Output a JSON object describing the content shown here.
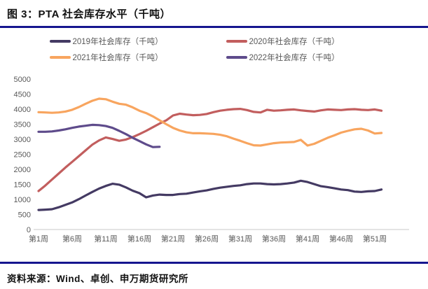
{
  "figure": {
    "title": "图 3：PTA 社会库存水平（千吨）"
  },
  "source": {
    "label": "资料来源：Wind、卓创、申万期货研究所"
  },
  "colors": {
    "divider": "#16168F",
    "axis_text": "#595959",
    "axis_line": "#C9C9C9"
  },
  "chart_data": {
    "type": "line",
    "title": "PTA 社会库存水平（千吨）",
    "xlabel": "周",
    "ylabel": "千吨",
    "ylim": [
      0,
      5000
    ],
    "y_tick_step": 500,
    "grid": false,
    "legend_position": "top",
    "n_weeks": 52,
    "x_tick_labels": [
      "第1周",
      "第6周",
      "第11周",
      "第16周",
      "第21周",
      "第26周",
      "第31周",
      "第36周",
      "第41周",
      "第46周",
      "第51周"
    ],
    "x_tick_weeks": [
      1,
      6,
      11,
      16,
      21,
      26,
      31,
      36,
      41,
      46,
      51
    ],
    "series": [
      {
        "id": "2019",
        "name": "2019年社会库存（千吨）",
        "color": "#443A63",
        "values": [
          650,
          660,
          675,
          740,
          820,
          900,
          1010,
          1130,
          1250,
          1360,
          1450,
          1520,
          1490,
          1400,
          1290,
          1210,
          1070,
          1130,
          1160,
          1150,
          1150,
          1180,
          1190,
          1230,
          1270,
          1300,
          1350,
          1390,
          1420,
          1450,
          1470,
          1510,
          1530,
          1530,
          1510,
          1500,
          1510,
          1530,
          1560,
          1620,
          1580,
          1510,
          1440,
          1410,
          1370,
          1330,
          1310,
          1260,
          1250,
          1270,
          1280,
          1330
        ]
      },
      {
        "id": "2020",
        "name": "2020年社会库存（千吨）",
        "color": "#C25E5E",
        "values": [
          1280,
          1460,
          1660,
          1860,
          2060,
          2250,
          2440,
          2630,
          2820,
          2960,
          3060,
          3010,
          2950,
          2990,
          3070,
          3170,
          3280,
          3400,
          3520,
          3630,
          3790,
          3850,
          3820,
          3800,
          3810,
          3840,
          3900,
          3950,
          3980,
          4000,
          4010,
          3970,
          3910,
          3890,
          3980,
          3950,
          3960,
          3980,
          3990,
          3960,
          3940,
          3920,
          3960,
          3990,
          3980,
          3970,
          3990,
          4000,
          3980,
          3970,
          3990,
          3950
        ]
      },
      {
        "id": "2021",
        "name": "2021年社会库存（千吨）",
        "color": "#F8A55F",
        "values": [
          3900,
          3890,
          3880,
          3890,
          3920,
          3980,
          4070,
          4180,
          4280,
          4350,
          4330,
          4250,
          4180,
          4150,
          4060,
          3950,
          3870,
          3760,
          3630,
          3500,
          3380,
          3290,
          3230,
          3200,
          3200,
          3190,
          3180,
          3150,
          3100,
          3020,
          2950,
          2870,
          2800,
          2790,
          2830,
          2870,
          2890,
          2900,
          2910,
          2980,
          2790,
          2850,
          2950,
          3050,
          3130,
          3220,
          3280,
          3330,
          3350,
          3290,
          3190,
          3210
        ]
      },
      {
        "id": "2022",
        "name": "2022年社会库存（千吨）",
        "color": "#5E4B8B",
        "values": [
          3250,
          3250,
          3260,
          3290,
          3330,
          3380,
          3420,
          3450,
          3480,
          3470,
          3440,
          3380,
          3280,
          3170,
          3050,
          2940,
          2830,
          2740,
          2750
        ]
      }
    ]
  }
}
